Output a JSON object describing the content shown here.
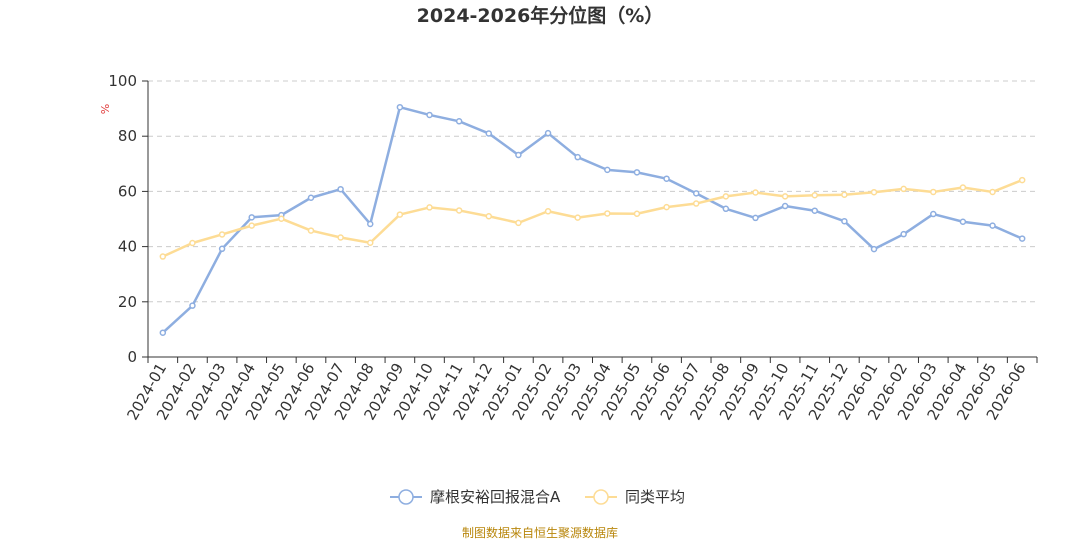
{
  "chart_data": {
    "type": "line",
    "title": "2024-2026年分位图（%）",
    "unit_label": "%",
    "ylim": [
      0,
      100
    ],
    "yticks": [
      0,
      20,
      40,
      60,
      80,
      100
    ],
    "grid": true,
    "legend_position": "bottom",
    "categories": [
      "2024-01",
      "2024-02",
      "2024-03",
      "2024-04",
      "2024-05",
      "2024-06",
      "2024-07",
      "2024-08",
      "2024-09",
      "2024-10",
      "2024-11",
      "2024-12",
      "2025-01",
      "2025-02",
      "2025-03",
      "2025-04",
      "2025-05",
      "2025-06",
      "2025-07",
      "2025-08",
      "2025-09",
      "2025-10",
      "2025-11",
      "2025-12",
      "2026-01",
      "2026-02",
      "2026-03",
      "2026-04",
      "2026-05",
      "2026-06"
    ],
    "series": [
      {
        "name": "摩根安裕回报混合A",
        "color": "#8eaee0",
        "values": [
          8.8,
          18.6,
          39.2,
          50.6,
          51.4,
          57.7,
          60.8,
          48.2,
          90.5,
          87.7,
          85.4,
          81.0,
          73.2,
          81.1,
          72.4,
          67.8,
          66.9,
          64.6,
          59.3,
          53.7,
          50.4,
          54.7,
          53.0,
          49.2,
          39.1,
          44.5,
          51.8,
          49.0,
          47.6,
          42.9
        ]
      },
      {
        "name": "同类平均",
        "color": "#fddc95",
        "values": [
          36.4,
          41.3,
          44.4,
          47.6,
          50.1,
          45.8,
          43.3,
          41.4,
          51.6,
          54.2,
          53.1,
          51.0,
          48.6,
          52.8,
          50.5,
          52.0,
          51.9,
          54.3,
          55.6,
          58.2,
          59.6,
          58.2,
          58.6,
          58.8,
          59.7,
          60.9,
          59.8,
          61.4,
          59.8,
          64.1
        ]
      }
    ]
  },
  "source_text": "制图数据来自恒生聚源数据库"
}
